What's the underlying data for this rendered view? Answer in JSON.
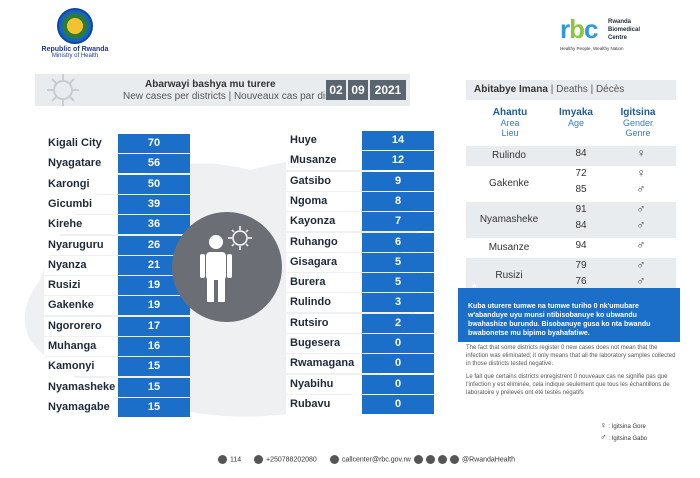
{
  "header": {
    "gov_line1": "Republic of Rwanda",
    "gov_line2": "Ministry of Health",
    "rbc_name": "Rwanda Biomedical Centre",
    "rbc_tagline": "Healthy People, Wealthy Nation"
  },
  "banner": {
    "title_rw": "Abarwayi bashya mu turere",
    "title_en_fr": "New cases per districts  |  Nouveaux cas par district",
    "date_day": "02",
    "date_month": "09",
    "date_year": "2021"
  },
  "left_districts": [
    {
      "name": "Kigali City",
      "value": "70"
    },
    {
      "name": "Nyagatare",
      "value": "56"
    },
    {
      "name": "Karongi",
      "value": "50"
    },
    {
      "name": "Gicumbi",
      "value": "39"
    },
    {
      "name": "Kirehe",
      "value": "36"
    },
    {
      "name": "Nyaruguru",
      "value": "26"
    },
    {
      "name": "Nyanza",
      "value": "21"
    },
    {
      "name": "Rusizi",
      "value": "19"
    },
    {
      "name": "Gakenke",
      "value": "19"
    },
    {
      "name": "Ngororero",
      "value": "17"
    },
    {
      "name": "Muhanga",
      "value": "16"
    },
    {
      "name": "Kamonyi",
      "value": "15"
    },
    {
      "name": "Nyamasheke",
      "value": "15"
    },
    {
      "name": "Nyamagabe",
      "value": "15"
    }
  ],
  "right_districts": [
    {
      "name": "Huye",
      "value": "14"
    },
    {
      "name": "Musanze",
      "value": "12"
    },
    {
      "name": "Gatsibo",
      "value": "9"
    },
    {
      "name": "Ngoma",
      "value": "8"
    },
    {
      "name": "Kayonza",
      "value": "7"
    },
    {
      "name": "Ruhango",
      "value": "6"
    },
    {
      "name": "Gisagara",
      "value": "5"
    },
    {
      "name": "Burera",
      "value": "5"
    },
    {
      "name": "Rulindo",
      "value": "3"
    },
    {
      "name": "Rutsiro",
      "value": "2"
    },
    {
      "name": "Bugesera",
      "value": "0"
    },
    {
      "name": "Rwamagana",
      "value": "0"
    },
    {
      "name": "Nyabihu",
      "value": "0"
    },
    {
      "name": "Rubavu",
      "value": "0"
    }
  ],
  "deaths": {
    "title_rw": "Abitabye Imana",
    "title_en": "Deaths",
    "title_fr": "Décès",
    "col_area_rw": "Ahantu",
    "col_area_en": "Area",
    "col_area_fr": "Lieu",
    "col_age_rw": "Imyaka",
    "col_age_en": "Age",
    "col_gender_rw": "Igitsina",
    "col_gender_en": "Gender",
    "col_gender_fr": "Genre",
    "groups": [
      {
        "district": "Rulindo",
        "entries": [
          {
            "age": "84",
            "gender": "♀"
          }
        ]
      },
      {
        "district": "Gakenke",
        "entries": [
          {
            "age": "72",
            "gender": "♀"
          },
          {
            "age": "85",
            "gender": "♂"
          }
        ]
      },
      {
        "district": "Nyamasheke",
        "entries": [
          {
            "age": "91",
            "gender": "♂"
          },
          {
            "age": "84",
            "gender": "♂"
          }
        ]
      },
      {
        "district": "Musanze",
        "entries": [
          {
            "age": "94",
            "gender": "♂"
          }
        ]
      },
      {
        "district": "Rusizi",
        "entries": [
          {
            "age": "79",
            "gender": "♂"
          },
          {
            "age": "76",
            "gender": "♂"
          }
        ]
      }
    ]
  },
  "note": {
    "star": "*",
    "rw": "Kuba uturere tumwe na tumwe turiho 0 nk'umubare w'abanduye uyu munsi ntibisobanuye ko ubwandu bwahashize burundu. Bisobanuye gusa ko nta bwandu bwabonetse mu bipimo byahafatiwe.",
    "en": "The fact that some districts register 0 new cases does not mean that the infection was eliminated; it only means that all the laboratory samples collected in those districts tested negative.",
    "fr": "Le fait que certains districts enregistrent 0 nouveaux cas ne signifie pas que l'infection y est éliminée, cela indique seulement que tous les échantillons de laboratoire y prélevés ont été testés négatifs"
  },
  "legend": {
    "female": "Igitsina Gore",
    "male": "Igitsina Gabo",
    "female_symbol": "♀",
    "male_symbol": "♂"
  },
  "footer": {
    "hotline": "114",
    "phone": "+250788202080",
    "email": "callcenter@rbc.gov.rw",
    "social": "@RwandaHealth"
  },
  "colors": {
    "value_blue": "#1c6fc9",
    "banner_grey": "#e9ecef",
    "date_grey": "#5b6570"
  },
  "icons": [
    "virus-icon",
    "person-icon",
    "phone-icon",
    "whatsapp-icon",
    "email-icon",
    "twitter-icon",
    "facebook-icon",
    "instagram-icon",
    "youtube-icon"
  ]
}
